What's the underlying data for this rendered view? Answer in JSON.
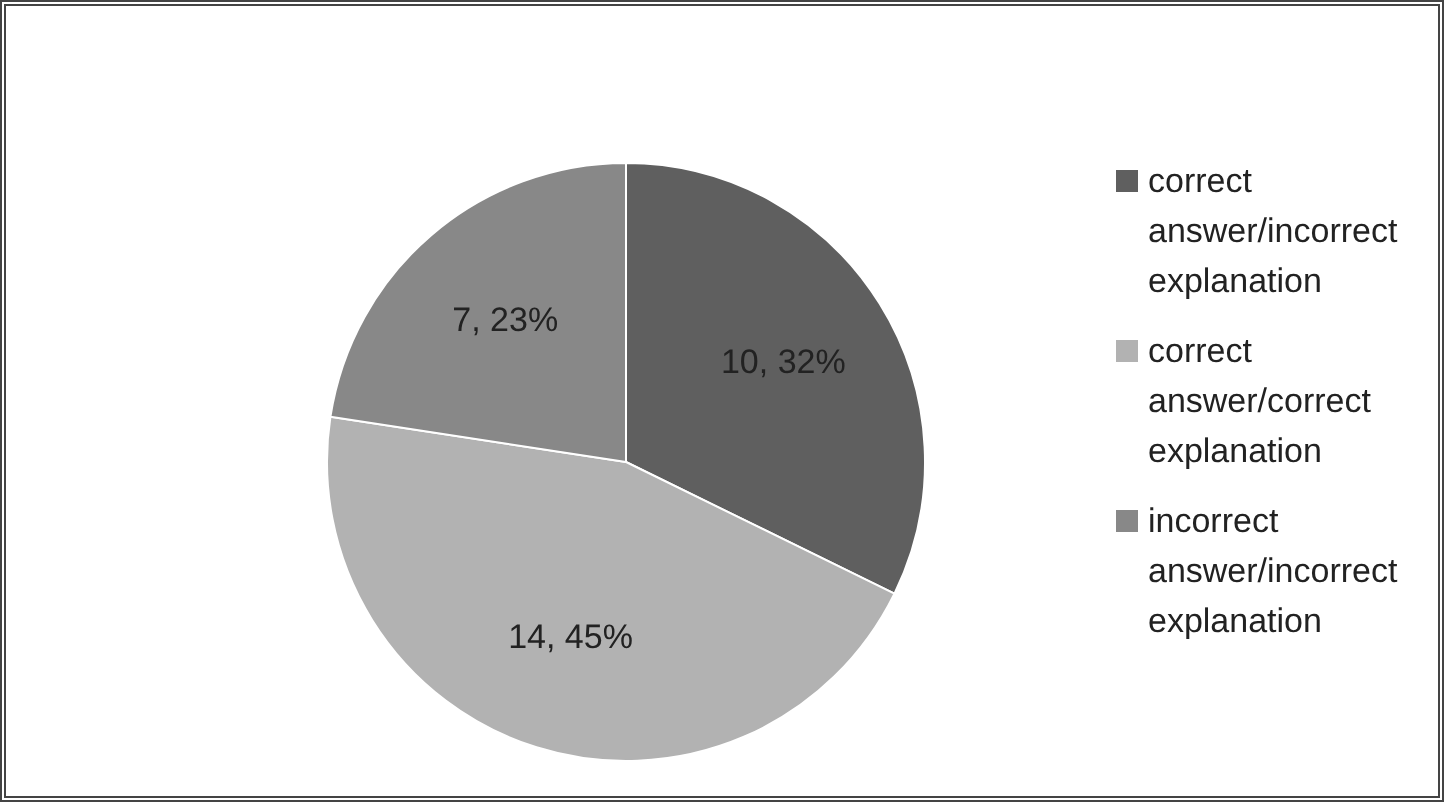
{
  "chart_data": {
    "type": "pie",
    "categories": [
      "correct answer/incorrect explanation",
      "correct answer/correct explanation",
      "incorrect answer/incorrect explanation"
    ],
    "values": [
      10,
      14,
      7
    ],
    "colors": [
      "#5f5f5f",
      "#b2b2b2",
      "#888888"
    ],
    "value_labels": [
      "10, 32%",
      "14, 45%",
      "7, 23%"
    ],
    "legend": "right"
  }
}
